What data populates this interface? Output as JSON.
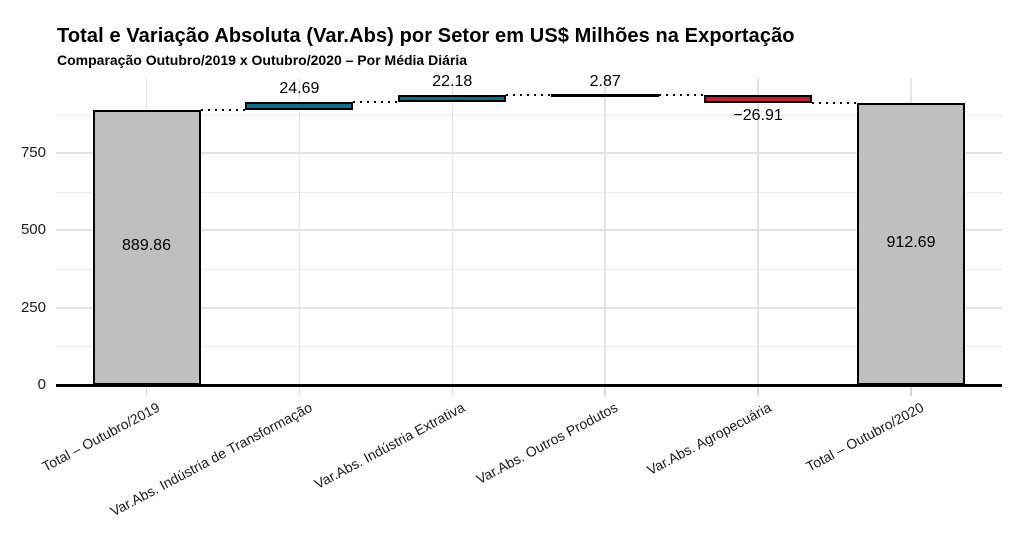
{
  "page": {
    "background": "#ffffff"
  },
  "chart_data": {
    "type": "bar",
    "subtype": "waterfall",
    "title": "Total e Variação Absoluta (Var.Abs) por Setor em US$ Milhões na Exportação",
    "subtitle": "Comparação Outubro/2019 x Outubro/2020 – Por Média Diária",
    "xlabel": "",
    "ylabel": "",
    "ylim": [
      0,
      995
    ],
    "grid": "on",
    "legend": "none",
    "yticks": [
      0,
      250,
      500,
      750
    ],
    "ytick_labels": [
      "0",
      "250",
      "500",
      "750"
    ],
    "yticks_minor": [
      125,
      375,
      625,
      875
    ],
    "categories": [
      "Total – Outubro/2019",
      "Var.Abs. Indústria de Transformação",
      "Var.Abs. Indústria Extrativa",
      "Var.Abs. Outros Produtos",
      "Var.Abs. Agropecuária",
      "Total – Outubro/2020"
    ],
    "bars": [
      {
        "label": "Total – Outubro/2019",
        "kind": "total",
        "value": 889.86,
        "display": "889.86",
        "start": 0,
        "end": 889.86
      },
      {
        "label": "Var.Abs. Indústria de Transformação",
        "kind": "increase",
        "value": 24.69,
        "display": "24.69",
        "start": 889.86,
        "end": 914.55
      },
      {
        "label": "Var.Abs. Indústria Extrativa",
        "kind": "increase",
        "value": 22.18,
        "display": "22.18",
        "start": 914.55,
        "end": 936.73
      },
      {
        "label": "Var.Abs. Outros Produtos",
        "kind": "increase",
        "value": 2.87,
        "display": "2.87",
        "start": 936.73,
        "end": 939.6
      },
      {
        "label": "Var.Abs. Agropecuária",
        "kind": "decrease",
        "value": -26.91,
        "display": "−26.91",
        "start": 939.6,
        "end": 912.69
      },
      {
        "label": "Total – Outubro/2020",
        "kind": "total",
        "value": 912.69,
        "display": "912.69",
        "start": 0,
        "end": 912.69
      }
    ],
    "colors": {
      "total": "#bfbfbf",
      "increase": "#0f6d89",
      "decrease": "#c01f2e",
      "stroke": "#000000",
      "grid": "#e3e3e3"
    }
  }
}
